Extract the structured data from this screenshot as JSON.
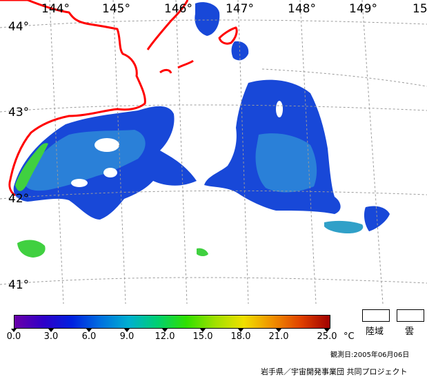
{
  "map": {
    "lat_labels": [
      "44°",
      "43°",
      "42°",
      "41°"
    ],
    "lon_labels": [
      "144°",
      "145°",
      "146°",
      "147°",
      "148°",
      "149°",
      "15"
    ],
    "colors": {
      "coastline": "#ff0000",
      "grid": "#9a9a9a",
      "sst_cold": "#1030d0",
      "sst_mid": "#2aa0d0",
      "sst_warm": "#40e020"
    }
  },
  "colorbar": {
    "ticks": [
      "0.0",
      "3.0",
      "6.0",
      "9.0",
      "12.0",
      "15.0",
      "18.0",
      "21.0",
      "25.0"
    ],
    "unit": "°C",
    "gradient": [
      "#6a00a8",
      "#3000c8",
      "#0020e0",
      "#0070e0",
      "#00b0d0",
      "#00d070",
      "#30e000",
      "#a0e000",
      "#f0e000",
      "#f09000",
      "#e04000",
      "#a00000"
    ]
  },
  "legend": {
    "land_label": "陸域",
    "cloud_label": "雲"
  },
  "observation": {
    "date_text": "観測日:2005年06月06日"
  },
  "credit": {
    "text": "岩手県／宇宙開発事業団 共同プロジェクト"
  }
}
